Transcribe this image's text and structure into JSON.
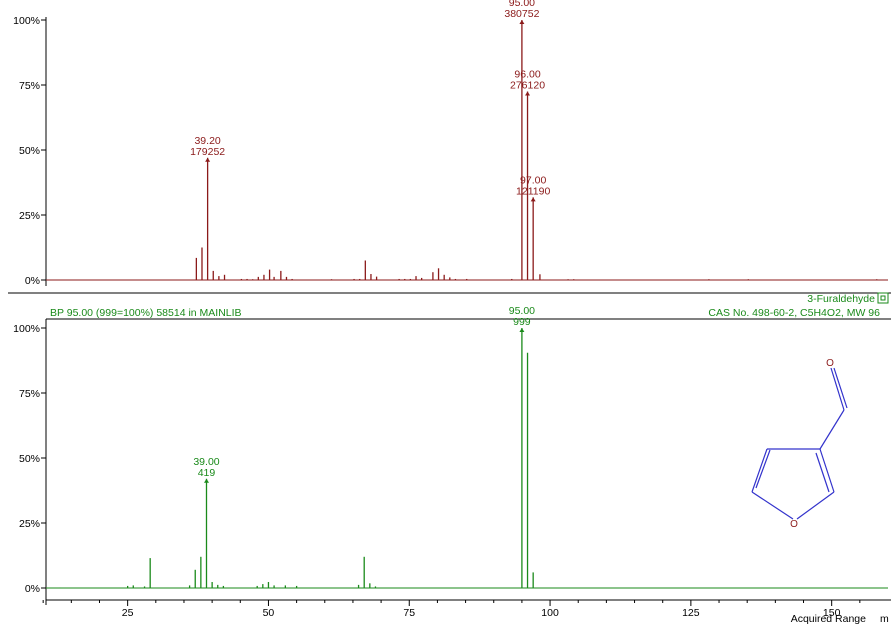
{
  "colors": {
    "sample": "#8b1a1a",
    "library": "#1a8a1a",
    "axis": "#000000",
    "structure": "#3333cc",
    "oxygen": "#8b1a1a"
  },
  "library_hit": {
    "left_text": "BP 95.00 (999=100%) 58514 in MAINLIB",
    "name": "3-Furaldehyde",
    "cas_text": "CAS No. 498-60-2, C5H4O2, MW 96"
  },
  "structure": {
    "atom_labels": [
      "O",
      "O"
    ]
  },
  "x_axis": {
    "min": 5,
    "max": 160,
    "ticks": [
      25,
      50,
      75,
      100,
      125,
      150
    ],
    "tick_labels": [
      "25",
      "50",
      "75",
      "100",
      "125",
      "150"
    ],
    "label": "Acquired Range",
    "unit": "m"
  },
  "chart_data": [
    {
      "type": "bar",
      "panel": "sample",
      "y_ticks": [
        "100%",
        "75%",
        "50%",
        "25%",
        "0%"
      ],
      "ylim": [
        0,
        100
      ],
      "x": [
        37.2,
        38.2,
        39.2,
        40.2,
        41.2,
        42.2,
        45.2,
        46.2,
        47.2,
        48.2,
        49.2,
        50.2,
        51.0,
        52.2,
        53.2,
        54.2,
        61.2,
        65.2,
        66.2,
        67.2,
        68.2,
        69.2,
        73.2,
        74.2,
        75.2,
        76.2,
        77.2,
        79.2,
        80.2,
        81.2,
        82.2,
        83.2,
        85.2,
        93.2,
        95.0,
        96.0,
        97.0,
        98.2,
        103.2,
        104.2,
        128.2,
        135.2,
        158.0
      ],
      "values": [
        8.5,
        12.5,
        47,
        3.5,
        1.5,
        2,
        0.4,
        0.4,
        0.3,
        1.2,
        2,
        4,
        1.2,
        3.5,
        1.2,
        0.4,
        0.3,
        0.4,
        0.4,
        7.5,
        2.3,
        1.3,
        0.4,
        0.4,
        0.4,
        1.5,
        0.8,
        3,
        4.5,
        2,
        1,
        0.4,
        0.4,
        0.4,
        100,
        72.5,
        31.8,
        2.2,
        0.3,
        0.3,
        0.3,
        0.3,
        0.3
      ],
      "annotations": [
        {
          "x": 39.2,
          "value": 47,
          "mz": "39.20",
          "abundance": "179252"
        },
        {
          "x": 95.0,
          "value": 100,
          "mz": "95.00",
          "abundance": "380752"
        },
        {
          "x": 96.0,
          "value": 72.5,
          "mz": "96.00",
          "abundance": "276120"
        },
        {
          "x": 97.0,
          "value": 31.8,
          "mz": "97.00",
          "abundance": "121190"
        }
      ]
    },
    {
      "type": "bar",
      "panel": "library",
      "y_ticks": [
        "100%",
        "75%",
        "50%",
        "25%",
        "0%"
      ],
      "ylim": [
        0,
        100
      ],
      "x": [
        13,
        25,
        26,
        28,
        29,
        36,
        37,
        38,
        39,
        40,
        41,
        42,
        48,
        49,
        50,
        51,
        53,
        55,
        66,
        67,
        68,
        69,
        95,
        96,
        97
      ],
      "values": [
        0.2,
        0.8,
        1,
        0.6,
        11.5,
        1,
        7,
        12,
        42,
        2.3,
        1.2,
        0.8,
        0.8,
        1.5,
        2.3,
        1,
        1,
        0.8,
        1.2,
        12,
        1.8,
        0.6,
        100,
        90.5,
        6
      ],
      "annotations": [
        {
          "x": 39.0,
          "value": 42,
          "mz": "39.00",
          "abundance": "419"
        },
        {
          "x": 95.0,
          "value": 100,
          "mz": "95.00",
          "abundance": "999"
        }
      ]
    }
  ]
}
